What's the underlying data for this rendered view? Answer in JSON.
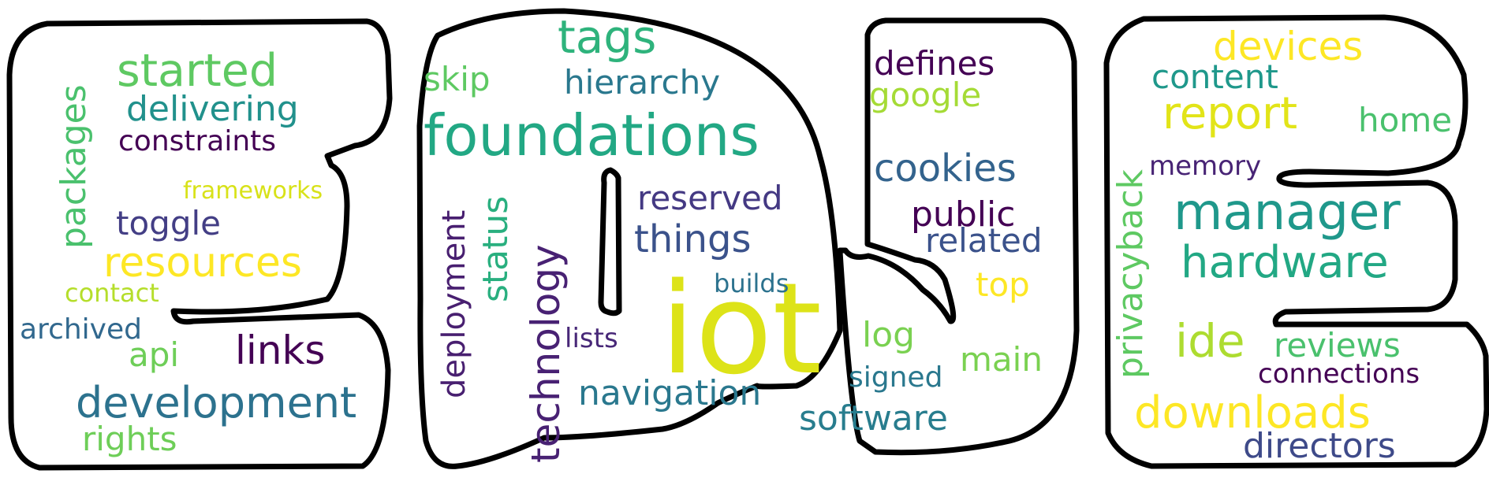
{
  "words": [
    {
      "text": "iot",
      "color": "#dde318"
    },
    {
      "text": "foundations",
      "color": "#22a884"
    },
    {
      "text": "manager",
      "color": "#1f988b"
    },
    {
      "text": "tags",
      "color": "#2eb37c"
    },
    {
      "text": "started",
      "color": "#5ec962"
    },
    {
      "text": "hardware",
      "color": "#22a884"
    },
    {
      "text": "report",
      "color": "#e2e418"
    },
    {
      "text": "downloads",
      "color": "#fde725"
    },
    {
      "text": "development",
      "color": "#2c728e"
    },
    {
      "text": "resources",
      "color": "#fde725"
    },
    {
      "text": "devices",
      "color": "#fde725"
    },
    {
      "text": "technology",
      "color": "#482173"
    },
    {
      "text": "cookies",
      "color": "#33638d"
    },
    {
      "text": "ide",
      "color": "#addc30"
    },
    {
      "text": "things",
      "color": "#3b528b"
    },
    {
      "text": "links",
      "color": "#440154"
    },
    {
      "text": "navigation",
      "color": "#2a788e"
    },
    {
      "text": "software",
      "color": "#287d8e"
    },
    {
      "text": "directors",
      "color": "#3e4a89"
    },
    {
      "text": "delivering",
      "color": "#21918c"
    },
    {
      "text": "reserved",
      "color": "#443983"
    },
    {
      "text": "defines",
      "color": "#440154"
    },
    {
      "text": "content",
      "color": "#1f988b"
    },
    {
      "text": "status",
      "color": "#29af7f"
    },
    {
      "text": "public",
      "color": "#440154"
    },
    {
      "text": "hierarchy",
      "color": "#2a788e"
    },
    {
      "text": "privacyback",
      "color": "#5ec962"
    },
    {
      "text": "packages",
      "color": "#4ac16d"
    },
    {
      "text": "toggle",
      "color": "#433e85"
    },
    {
      "text": "reviews",
      "color": "#4ac16d"
    },
    {
      "text": "related",
      "color": "#3b528b"
    },
    {
      "text": "home",
      "color": "#4ac16d"
    },
    {
      "text": "main",
      "color": "#7ad151"
    },
    {
      "text": "log",
      "color": "#7ad151"
    },
    {
      "text": "google",
      "color": "#a5db36"
    },
    {
      "text": "skip",
      "color": "#5ec962"
    },
    {
      "text": "top",
      "color": "#fde725"
    },
    {
      "text": "api",
      "color": "#6ece58"
    },
    {
      "text": "rights",
      "color": "#6ece58"
    },
    {
      "text": "deployment",
      "color": "#481f70"
    },
    {
      "text": "constraints",
      "color": "#440154"
    },
    {
      "text": "connections",
      "color": "#440154"
    },
    {
      "text": "archived",
      "color": "#31688e"
    },
    {
      "text": "signed",
      "color": "#2a788e"
    },
    {
      "text": "memory",
      "color": "#482475"
    },
    {
      "text": "lists",
      "color": "#482878"
    },
    {
      "text": "builds",
      "color": "#2c728e"
    },
    {
      "text": "contact",
      "color": "#b5de2b"
    },
    {
      "text": "frameworks",
      "color": "#d8e219"
    }
  ]
}
